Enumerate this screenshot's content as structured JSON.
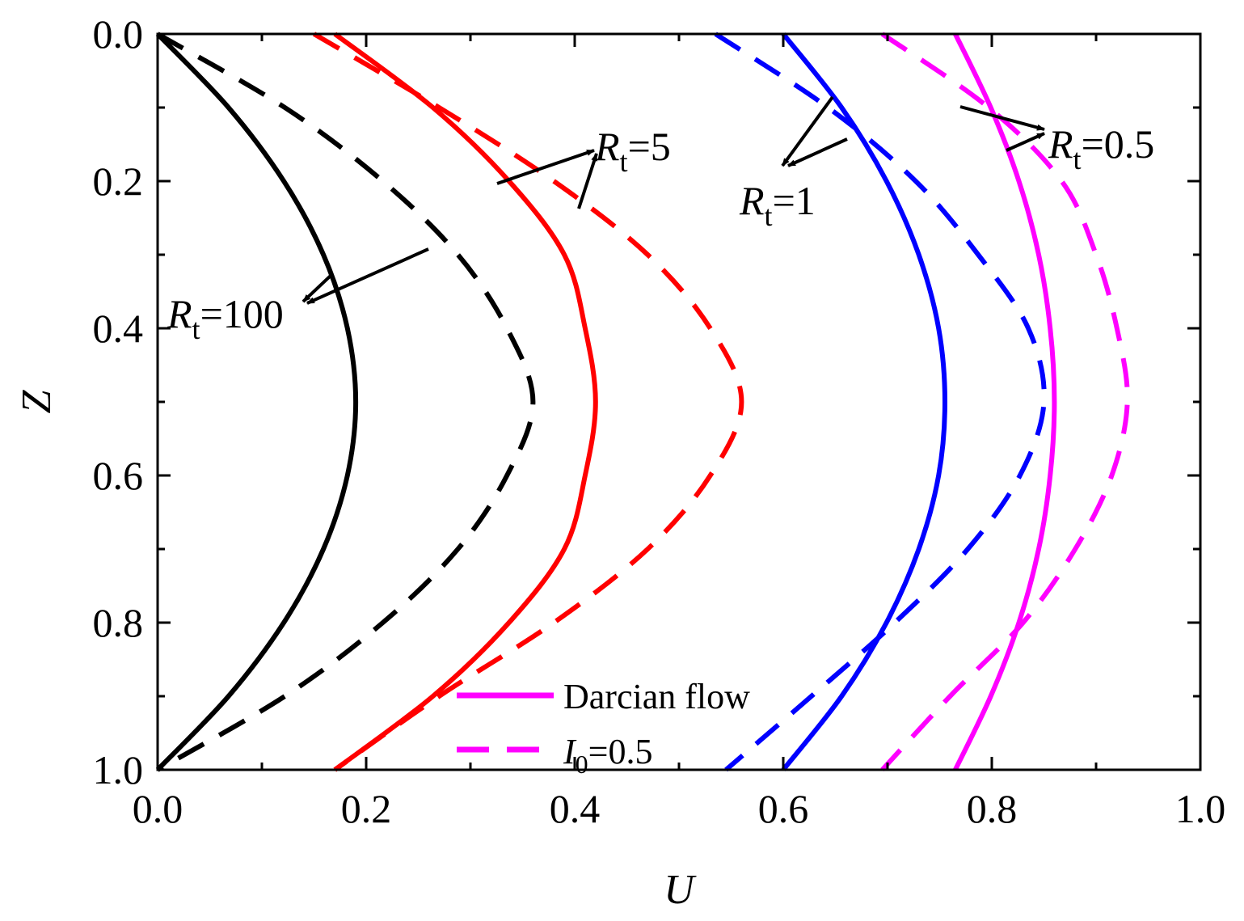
{
  "chart_data": {
    "type": "line",
    "xlabel": "U",
    "ylabel": "Z",
    "xlim": [
      0.0,
      1.0
    ],
    "ylim": [
      0.0,
      1.0
    ],
    "y_inverted": true,
    "grid": false,
    "legend_position": "bottom-center",
    "x_ticks": [
      "0.0",
      "0.2",
      "0.4",
      "0.6",
      "0.8",
      "1.0"
    ],
    "y_ticks": [
      "0.0",
      "0.2",
      "0.4",
      "0.6",
      "0.8",
      "1.0"
    ],
    "legend": [
      {
        "label": "Darcian flow",
        "style": "solid",
        "color": "#ff00ff"
      },
      {
        "label_italic": "I",
        "label_sub": "0",
        "label_rest": "=0.5",
        "style": "dashed",
        "color": "#ff00ff"
      }
    ],
    "annotations": [
      {
        "italic": "R",
        "sub": "t",
        "rest": "=100"
      },
      {
        "italic": "R",
        "sub": "t",
        "rest": "=5"
      },
      {
        "italic": "R",
        "sub": "t",
        "rest": "=1"
      },
      {
        "italic": "R",
        "sub": "t",
        "rest": "=0.5"
      }
    ],
    "z": [
      0.0,
      0.1,
      0.2,
      0.3,
      0.4,
      0.5,
      0.6,
      0.7,
      0.8,
      0.9,
      1.0
    ],
    "series": [
      {
        "group": "Rt=100",
        "style": "solid",
        "color": "#000000",
        "u": [
          0.0,
          0.068,
          0.121,
          0.159,
          0.182,
          0.19,
          0.182,
          0.159,
          0.121,
          0.068,
          0.0
        ]
      },
      {
        "group": "Rt=100",
        "style": "dashed",
        "color": "#000000",
        "u": [
          0.0,
          0.122,
          0.216,
          0.288,
          0.335,
          0.36,
          0.335,
          0.288,
          0.216,
          0.122,
          0.0
        ]
      },
      {
        "group": "Rt=5",
        "style": "solid",
        "color": "#ff0000",
        "u": [
          0.17,
          0.264,
          0.337,
          0.39,
          0.41,
          0.42,
          0.41,
          0.39,
          0.337,
          0.264,
          0.17
        ]
      },
      {
        "group": "Rt=5",
        "style": "dashed",
        "color": "#ff0000",
        "u": [
          0.15,
          0.27,
          0.38,
          0.47,
          0.53,
          0.56,
          0.53,
          0.47,
          0.38,
          0.27,
          0.17
        ]
      },
      {
        "group": "Rt=1",
        "style": "solid",
        "color": "#0000ff",
        "u": [
          0.6,
          0.656,
          0.699,
          0.73,
          0.749,
          0.755,
          0.749,
          0.73,
          0.699,
          0.656,
          0.6
        ]
      },
      {
        "group": "Rt=1",
        "style": "dashed",
        "color": "#0000ff",
        "u": [
          0.535,
          0.643,
          0.727,
          0.787,
          0.835,
          0.85,
          0.827,
          0.777,
          0.707,
          0.627,
          0.545
        ]
      },
      {
        "group": "Rt=0.5",
        "style": "solid",
        "color": "#ff00ff",
        "u": [
          0.765,
          0.799,
          0.826,
          0.845,
          0.856,
          0.86,
          0.856,
          0.845,
          0.826,
          0.799,
          0.765
        ]
      },
      {
        "group": "Rt=0.5",
        "style": "dashed",
        "color": "#ff00ff",
        "u": [
          0.695,
          0.797,
          0.867,
          0.9,
          0.92,
          0.93,
          0.915,
          0.88,
          0.83,
          0.76,
          0.695
        ]
      }
    ]
  }
}
